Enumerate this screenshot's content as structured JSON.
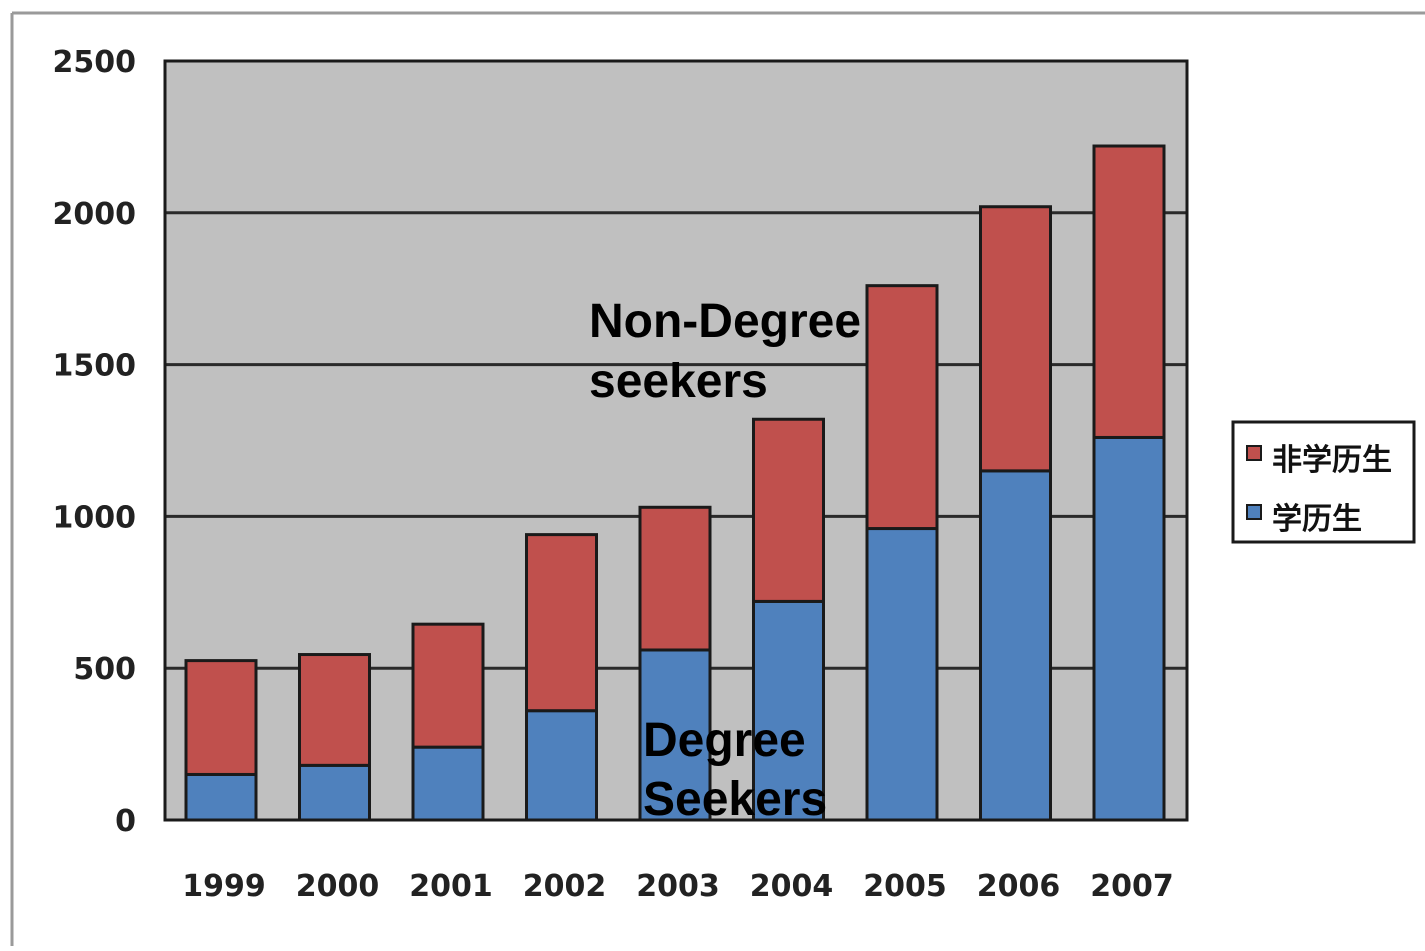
{
  "chart_data": {
    "type": "bar",
    "stacked": true,
    "categories": [
      "1999",
      "2000",
      "2001",
      "2002",
      "2003",
      "2004",
      "2005",
      "2006",
      "2007"
    ],
    "series": [
      {
        "name": "学历生",
        "color": "#4f81bd",
        "values": [
          150,
          180,
          240,
          360,
          560,
          720,
          960,
          1150,
          1260
        ]
      },
      {
        "name": "非学历生",
        "color": "#c0504d",
        "values": [
          375,
          365,
          405,
          580,
          470,
          600,
          800,
          870,
          960
        ]
      }
    ],
    "totals": [
      525,
      545,
      645,
      940,
      1030,
      1320,
      1760,
      2020,
      2220
    ],
    "yticks": [
      0,
      500,
      1000,
      1500,
      2000,
      2500
    ],
    "ylim": [
      0,
      2500
    ],
    "grid": true,
    "plot_background": "#c0c0c0",
    "legend": {
      "position": "right",
      "entries": [
        "非学历生",
        "学历生"
      ]
    },
    "annotations": [
      {
        "lines": [
          "Non-Degree",
          "seekers"
        ]
      },
      {
        "lines": [
          "Degree",
          "Seekers"
        ]
      }
    ]
  }
}
